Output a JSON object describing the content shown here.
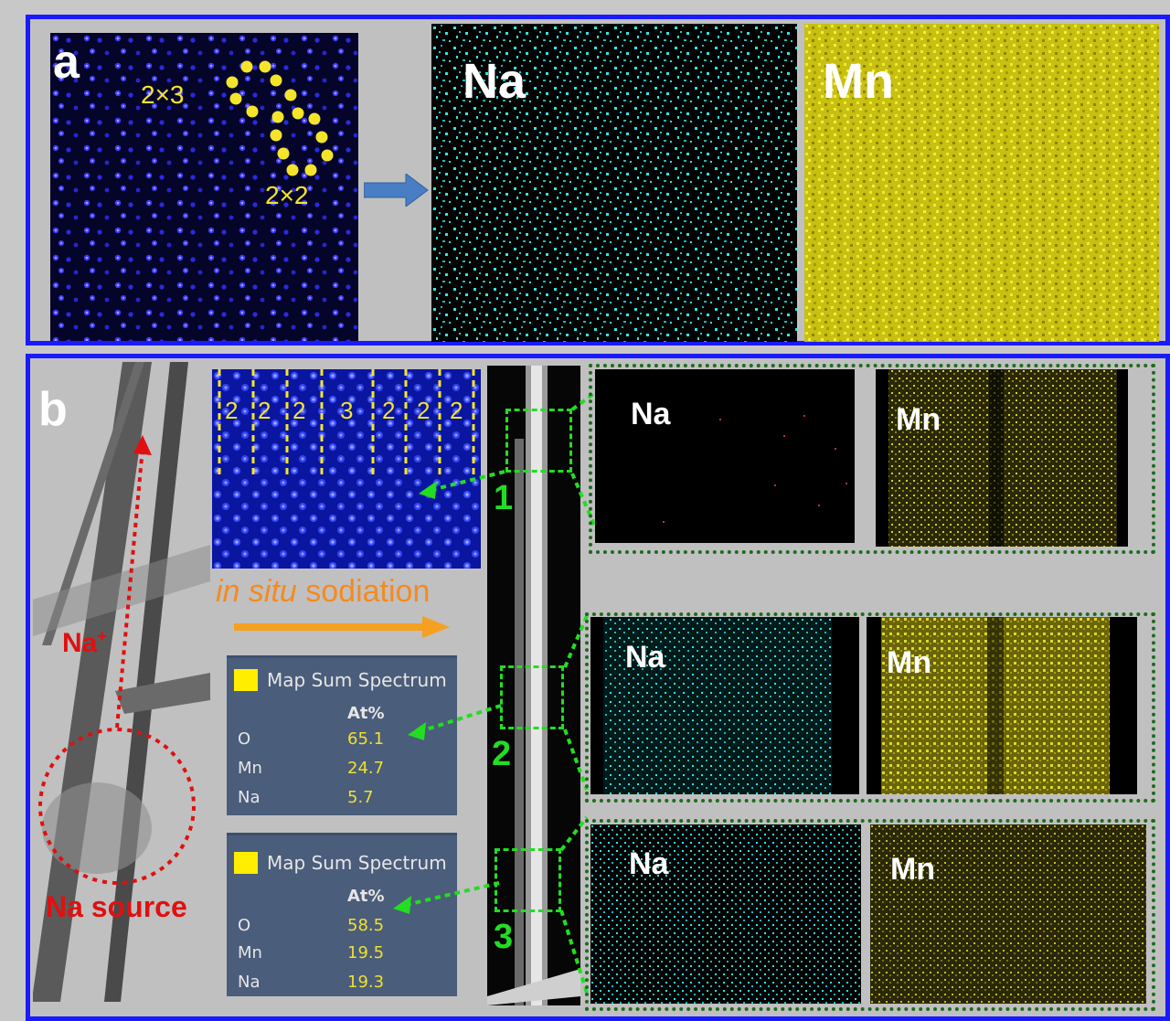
{
  "panel_a": {
    "label": "a",
    "tunnel_2x3": "2×3",
    "tunnel_2x2": "2×2",
    "map_na": "Na",
    "map_mn": "Mn"
  },
  "panel_b": {
    "label": "b",
    "tunnel_numbers": [
      "2",
      "2",
      "2",
      "3",
      "2",
      "2",
      "2"
    ],
    "process_prefix": "in situ",
    "process_suffix": " sodiation",
    "na_ion_base": "Na",
    "na_ion_sup": "+",
    "na_source": "Na source",
    "region_numbers": [
      "1",
      "2",
      "3"
    ],
    "spectra": [
      {
        "title": "Map Sum Spectrum",
        "header": "At%",
        "rows": [
          {
            "element": "O",
            "value": "65.1"
          },
          {
            "element": "Mn",
            "value": "24.7"
          },
          {
            "element": "Na",
            "value": "5.7"
          }
        ]
      },
      {
        "title": "Map Sum Spectrum",
        "header": "At%",
        "rows": [
          {
            "element": "O",
            "value": "58.5"
          },
          {
            "element": "Mn",
            "value": "19.5"
          },
          {
            "element": "Na",
            "value": "19.3"
          }
        ]
      }
    ],
    "maps": [
      {
        "na": "Na",
        "mn": "Mn"
      },
      {
        "na": "Na",
        "mn": "Mn"
      },
      {
        "na": "Na",
        "mn": "Mn"
      }
    ]
  },
  "colors": {
    "frame": "#1a1aff",
    "na_map": "#2ee6e6",
    "mn_map": "#e6e01a",
    "arrow_green": "#22dd22",
    "arrow_red": "#e01010",
    "sodiation_orange": "#f58a1f",
    "tunnel_yellow": "#f5e52a"
  }
}
